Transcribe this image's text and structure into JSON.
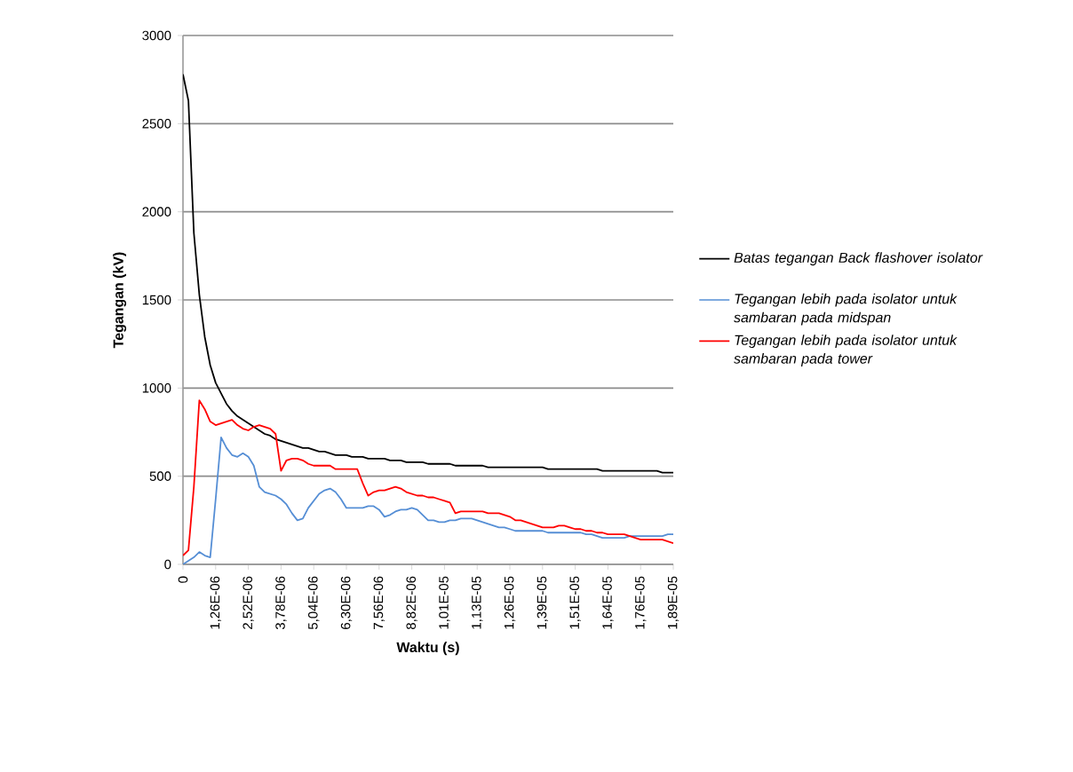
{
  "chart_data": {
    "type": "line",
    "xlabel": "Waktu (s)",
    "ylabel": "Tegangan (kV)",
    "categories": [
      "0",
      null,
      null,
      null,
      null,
      null,
      "1,26E-06",
      null,
      null,
      null,
      null,
      null,
      "2,52E-06",
      null,
      null,
      null,
      null,
      null,
      "3,78E-06",
      null,
      null,
      null,
      null,
      null,
      "5,04E-06",
      null,
      null,
      null,
      null,
      null,
      "6,30E-06",
      null,
      null,
      null,
      null,
      null,
      "7,56E-06",
      null,
      null,
      null,
      null,
      null,
      "8,82E-06",
      null,
      null,
      null,
      null,
      null,
      "1,01E-05",
      null,
      null,
      null,
      null,
      null,
      "1,13E-05",
      null,
      null,
      null,
      null,
      null,
      "1,26E-05",
      null,
      null,
      null,
      null,
      null,
      "1,39E-05",
      null,
      null,
      null,
      null,
      null,
      "1,51E-05",
      null,
      null,
      null,
      null,
      null,
      "1,64E-05",
      null,
      null,
      null,
      null,
      null,
      "1,76E-05",
      null,
      null,
      null,
      null,
      null,
      "1,89E-05"
    ],
    "ylim": [
      0,
      3000
    ],
    "yticks": [
      0,
      500,
      1000,
      1500,
      2000,
      2500,
      3000
    ],
    "grid": "y",
    "legend": "right",
    "series": [
      {
        "name": "Batas tegangan Back flashover isolator",
        "color": "#000000",
        "values": [
          2780,
          2630,
          1880,
          1530,
          1290,
          1130,
          1030,
          970,
          910,
          870,
          840,
          820,
          800,
          780,
          760,
          740,
          730,
          710,
          700,
          690,
          680,
          670,
          660,
          660,
          650,
          640,
          640,
          630,
          620,
          620,
          620,
          610,
          610,
          610,
          600,
          600,
          600,
          600,
          590,
          590,
          590,
          580,
          580,
          580,
          580,
          570,
          570,
          570,
          570,
          570,
          560,
          560,
          560,
          560,
          560,
          560,
          550,
          550,
          550,
          550,
          550,
          550,
          550,
          550,
          550,
          550,
          550,
          540,
          540,
          540,
          540,
          540,
          540,
          540,
          540,
          540,
          540,
          530,
          530,
          530,
          530,
          530,
          530,
          530,
          530,
          530,
          530,
          530,
          520,
          520,
          520
        ]
      },
      {
        "name": "Tegangan lebih pada isolator untuk sambaran pada midspan",
        "color": "#558ed5",
        "values": [
          0,
          20,
          40,
          70,
          50,
          40,
          370,
          720,
          660,
          620,
          610,
          630,
          610,
          560,
          440,
          410,
          400,
          390,
          370,
          340,
          290,
          250,
          260,
          320,
          360,
          400,
          420,
          430,
          410,
          370,
          320,
          320,
          320,
          320,
          330,
          330,
          310,
          270,
          280,
          300,
          310,
          310,
          320,
          310,
          280,
          250,
          250,
          240,
          240,
          250,
          250,
          260,
          260,
          260,
          250,
          240,
          230,
          220,
          210,
          210,
          200,
          190,
          190,
          190,
          190,
          190,
          190,
          180,
          180,
          180,
          180,
          180,
          180,
          180,
          170,
          170,
          160,
          150,
          150,
          150,
          150,
          150,
          160,
          160,
          160,
          160,
          160,
          160,
          160,
          170,
          170
        ]
      },
      {
        "name": "Tegangan lebih pada isolator untuk sambaran pada tower",
        "color": "#ff0000",
        "values": [
          50,
          80,
          440,
          930,
          880,
          810,
          790,
          800,
          810,
          820,
          790,
          770,
          760,
          780,
          790,
          780,
          770,
          740,
          530,
          590,
          600,
          600,
          590,
          570,
          560,
          560,
          560,
          560,
          540,
          540,
          540,
          540,
          540,
          460,
          390,
          410,
          420,
          420,
          430,
          440,
          430,
          410,
          400,
          390,
          390,
          380,
          380,
          370,
          360,
          350,
          290,
          300,
          300,
          300,
          300,
          300,
          290,
          290,
          290,
          280,
          270,
          250,
          250,
          240,
          230,
          220,
          210,
          210,
          210,
          220,
          220,
          210,
          200,
          200,
          190,
          190,
          180,
          180,
          170,
          170,
          170,
          170,
          160,
          150,
          140,
          140,
          140,
          140,
          140,
          130,
          120
        ]
      }
    ]
  }
}
